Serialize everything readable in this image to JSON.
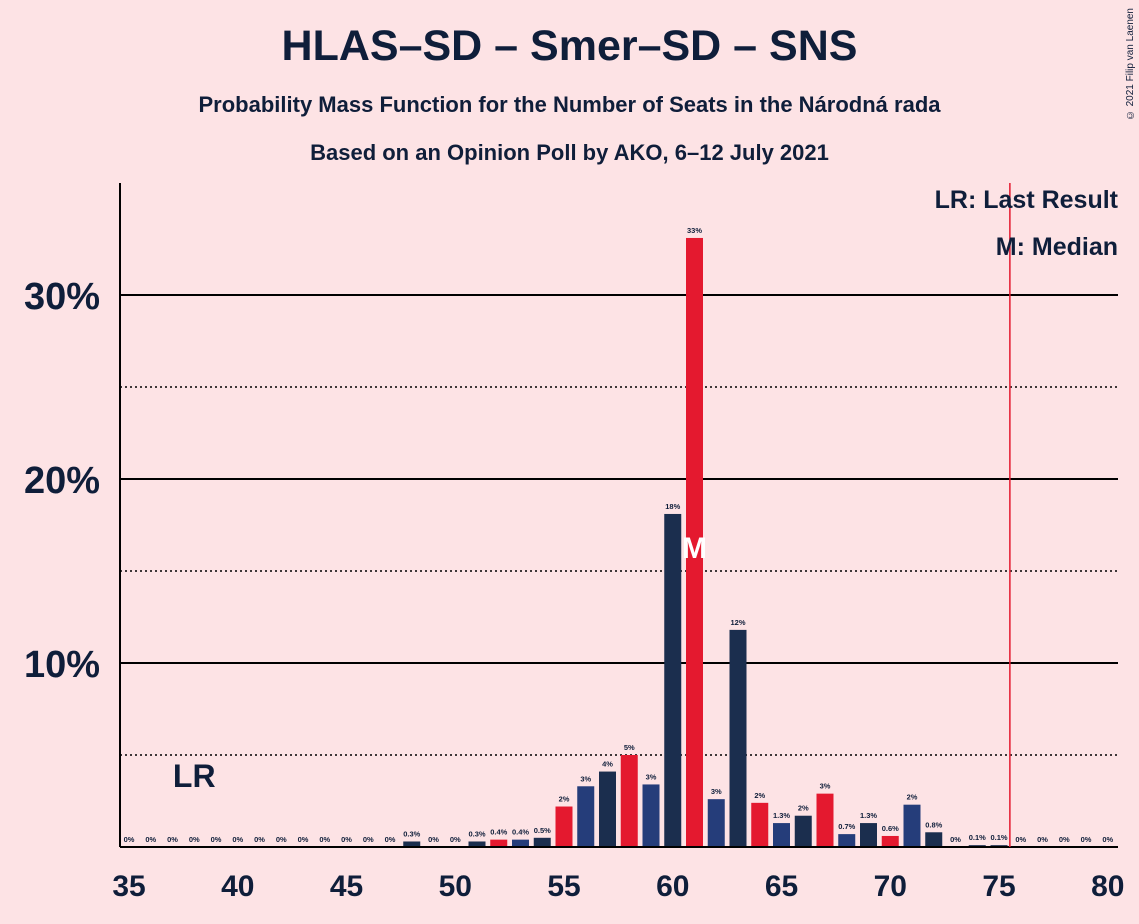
{
  "copyright": "© 2021 Filip van Laenen",
  "chart_data": {
    "type": "bar",
    "title": "HLAS–SD – Smer–SD – SNS",
    "subtitle": "Probability Mass Function for the Number of Seats in the Národná rada",
    "subtitle2": "Based on an Opinion Poll by AKO, 6–12 July 2021",
    "legend": {
      "last_result": "LR: Last Result",
      "median": "M: Median"
    },
    "lr_label": "LR",
    "median_label": "M",
    "last_result_seat": 38,
    "median_seat": 61,
    "majority_line_seat": 75.5,
    "xlim": [
      35,
      80
    ],
    "ylim": [
      0,
      36
    ],
    "x_ticks": [
      35,
      40,
      45,
      50,
      55,
      60,
      65,
      70,
      75,
      80
    ],
    "y_ticks": [
      {
        "value": 10,
        "label": "10%"
      },
      {
        "value": 20,
        "label": "20%"
      },
      {
        "value": 30,
        "label": "30%"
      }
    ],
    "dotted_gridlines": [
      5,
      15,
      25
    ],
    "colors": {
      "navy": "#1B2E4E",
      "blue": "#253D7A",
      "red": "#E4192F",
      "background": "#FDE3E5"
    },
    "bars": [
      {
        "seats": 35,
        "value": 0,
        "label": "0%",
        "color": "navy"
      },
      {
        "seats": 36,
        "value": 0,
        "label": "0%",
        "color": "navy"
      },
      {
        "seats": 37,
        "value": 0,
        "label": "0%",
        "color": "navy"
      },
      {
        "seats": 38,
        "value": 0,
        "label": "0%",
        "color": "navy"
      },
      {
        "seats": 39,
        "value": 0,
        "label": "0%",
        "color": "navy"
      },
      {
        "seats": 40,
        "value": 0,
        "label": "0%",
        "color": "navy"
      },
      {
        "seats": 41,
        "value": 0,
        "label": "0%",
        "color": "navy"
      },
      {
        "seats": 42,
        "value": 0,
        "label": "0%",
        "color": "navy"
      },
      {
        "seats": 43,
        "value": 0,
        "label": "0%",
        "color": "navy"
      },
      {
        "seats": 44,
        "value": 0,
        "label": "0%",
        "color": "navy"
      },
      {
        "seats": 45,
        "value": 0,
        "label": "0%",
        "color": "navy"
      },
      {
        "seats": 46,
        "value": 0,
        "label": "0%",
        "color": "navy"
      },
      {
        "seats": 47,
        "value": 0,
        "label": "0%",
        "color": "navy"
      },
      {
        "seats": 48,
        "value": 0.3,
        "label": "0.3%",
        "color": "navy"
      },
      {
        "seats": 49,
        "value": 0,
        "label": "0%",
        "color": "navy"
      },
      {
        "seats": 50,
        "value": 0,
        "label": "0%",
        "color": "navy"
      },
      {
        "seats": 51,
        "value": 0.3,
        "label": "0.3%",
        "color": "navy"
      },
      {
        "seats": 52,
        "value": 0.4,
        "label": "0.4%",
        "color": "red"
      },
      {
        "seats": 53,
        "value": 0.4,
        "label": "0.4%",
        "color": "blue"
      },
      {
        "seats": 54,
        "value": 0.5,
        "label": "0.5%",
        "color": "navy"
      },
      {
        "seats": 55,
        "value": 2.2,
        "label": "2%",
        "color": "red"
      },
      {
        "seats": 56,
        "value": 3.3,
        "label": "3%",
        "color": "blue"
      },
      {
        "seats": 57,
        "value": 4.1,
        "label": "4%",
        "color": "navy"
      },
      {
        "seats": 58,
        "value": 5.0,
        "label": "5%",
        "color": "red"
      },
      {
        "seats": 59,
        "value": 3.4,
        "label": "3%",
        "color": "blue"
      },
      {
        "seats": 60,
        "value": 18.1,
        "label": "18%",
        "color": "navy"
      },
      {
        "seats": 61,
        "value": 33.1,
        "label": "33%",
        "color": "red"
      },
      {
        "seats": 62,
        "value": 2.6,
        "label": "3%",
        "color": "blue"
      },
      {
        "seats": 63,
        "value": 11.8,
        "label": "12%",
        "color": "navy"
      },
      {
        "seats": 64,
        "value": 2.4,
        "label": "2%",
        "color": "red"
      },
      {
        "seats": 65,
        "value": 1.3,
        "label": "1.3%",
        "color": "blue"
      },
      {
        "seats": 66,
        "value": 1.7,
        "label": "2%",
        "color": "navy"
      },
      {
        "seats": 67,
        "value": 2.9,
        "label": "3%",
        "color": "red"
      },
      {
        "seats": 68,
        "value": 0.7,
        "label": "0.7%",
        "color": "blue"
      },
      {
        "seats": 69,
        "value": 1.3,
        "label": "1.3%",
        "color": "navy"
      },
      {
        "seats": 70,
        "value": 0.6,
        "label": "0.6%",
        "color": "red"
      },
      {
        "seats": 71,
        "value": 2.3,
        "label": "2%",
        "color": "blue"
      },
      {
        "seats": 72,
        "value": 0.8,
        "label": "0.8%",
        "color": "navy"
      },
      {
        "seats": 73,
        "value": 0,
        "label": "0%",
        "color": "navy"
      },
      {
        "seats": 74,
        "value": 0.1,
        "label": "0.1%",
        "color": "navy"
      },
      {
        "seats": 75,
        "value": 0.1,
        "label": "0.1%",
        "color": "navy"
      },
      {
        "seats": 76,
        "value": 0,
        "label": "0%",
        "color": "navy"
      },
      {
        "seats": 77,
        "value": 0,
        "label": "0%",
        "color": "navy"
      },
      {
        "seats": 78,
        "value": 0,
        "label": "0%",
        "color": "navy"
      },
      {
        "seats": 79,
        "value": 0,
        "label": "0%",
        "color": "navy"
      },
      {
        "seats": 80,
        "value": 0,
        "label": "0%",
        "color": "navy"
      }
    ]
  }
}
